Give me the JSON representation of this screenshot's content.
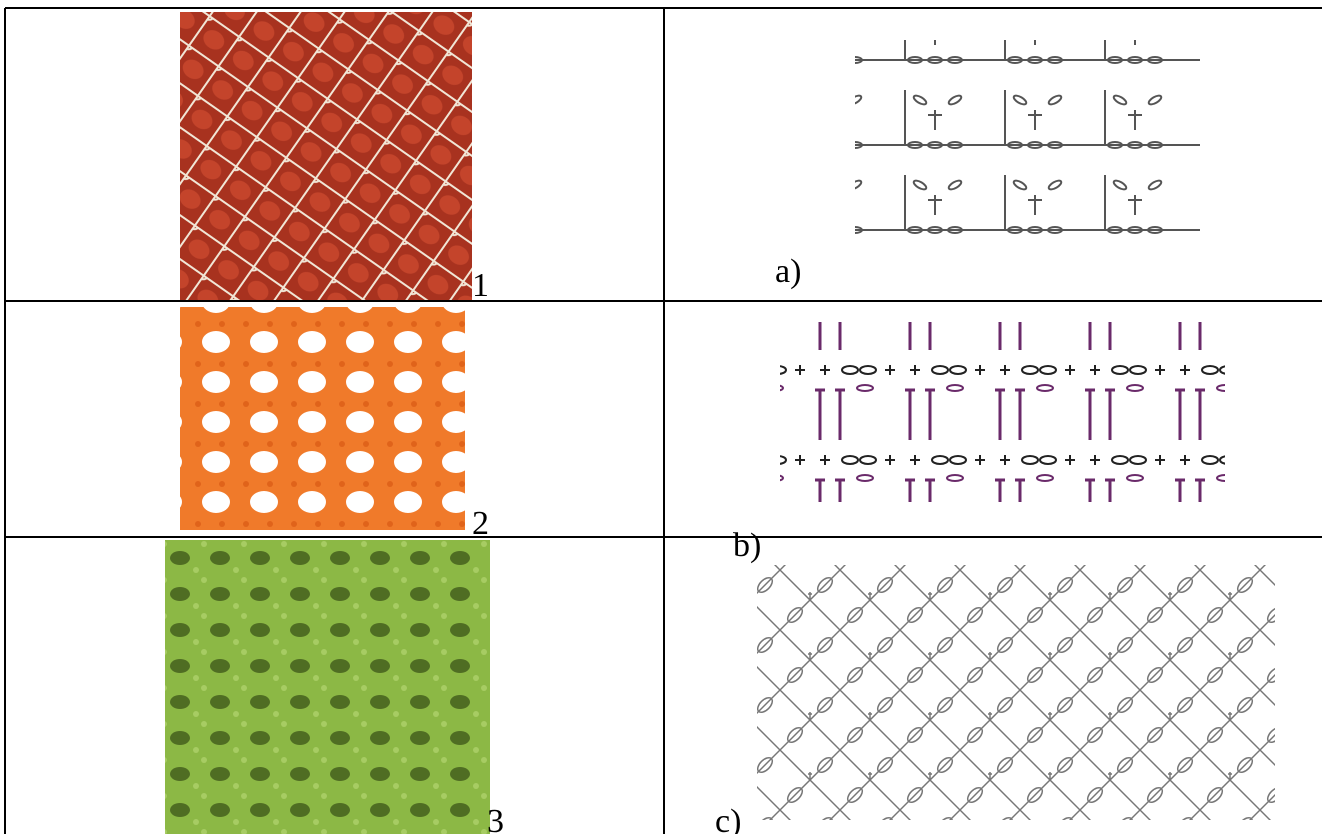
{
  "table": {
    "rows": [
      [
        {
          "label": "1"
        },
        {
          "label": "a)"
        }
      ],
      [
        {
          "label": "2"
        },
        {
          "label": "b)"
        }
      ],
      [
        {
          "label": "3"
        },
        {
          "label": "c)"
        }
      ]
    ]
  }
}
